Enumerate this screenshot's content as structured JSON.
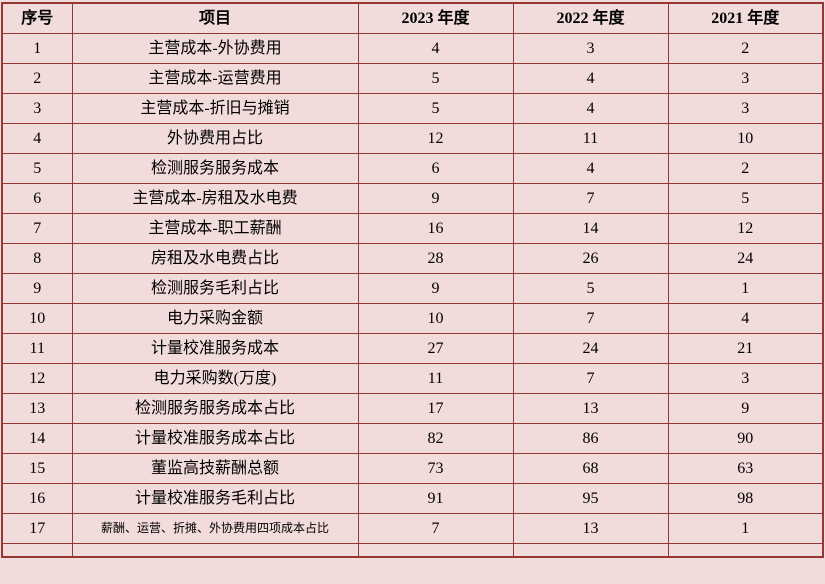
{
  "colors": {
    "background": "#f2dcdb",
    "border": "#953734",
    "text": "#000000"
  },
  "table": {
    "headers": [
      "序号",
      "项目",
      "2023 年度",
      "2022 年度",
      "2021 年度"
    ],
    "rows": [
      [
        "1",
        "主营成本-外协费用",
        "4",
        "3",
        "2"
      ],
      [
        "2",
        "主营成本-运营费用",
        "5",
        "4",
        "3"
      ],
      [
        "3",
        "主营成本-折旧与摊销",
        "5",
        "4",
        "3"
      ],
      [
        "4",
        "外协费用占比",
        "12",
        "11",
        "10"
      ],
      [
        "5",
        "检测服务服务成本",
        "6",
        "4",
        "2"
      ],
      [
        "6",
        "主营成本-房租及水电费",
        "9",
        "7",
        "5"
      ],
      [
        "7",
        "主营成本-职工薪酬",
        "16",
        "14",
        "12"
      ],
      [
        "8",
        "房租及水电费占比",
        "28",
        "26",
        "24"
      ],
      [
        "9",
        "检测服务毛利占比",
        "9",
        "5",
        "1"
      ],
      [
        "10",
        "电力采购金额",
        "10",
        "7",
        "4"
      ],
      [
        "11",
        "计量校准服务成本",
        "27",
        "24",
        "21"
      ],
      [
        "12",
        "电力采购数(万度)",
        "11",
        "7",
        "3"
      ],
      [
        "13",
        "检测服务服务成本占比",
        "17",
        "13",
        "9"
      ],
      [
        "14",
        "计量校准服务成本占比",
        "82",
        "86",
        "90"
      ],
      [
        "15",
        "董监高技薪酬总额",
        "73",
        "68",
        "63"
      ],
      [
        "16",
        "计量校准服务毛利占比",
        "91",
        "95",
        "98"
      ],
      [
        "17",
        "薪酬、运营、折摊、外协费用四项成本占比",
        "7",
        "13",
        "1"
      ]
    ]
  }
}
